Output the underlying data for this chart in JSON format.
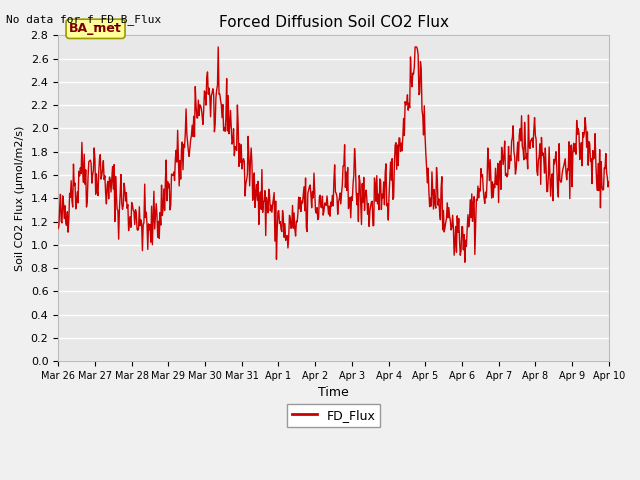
{
  "title": "Forced Diffusion Soil CO2 Flux",
  "top_left_text": "No data for f_FD_B_Flux",
  "ylabel": "Soil CO2 Flux (μmol/m2/s)",
  "xlabel": "Time",
  "ylim": [
    0.0,
    2.8
  ],
  "yticks": [
    0.0,
    0.2,
    0.4,
    0.6,
    0.8,
    1.0,
    1.2,
    1.4,
    1.6,
    1.8,
    2.0,
    2.2,
    2.4,
    2.6,
    2.8
  ],
  "line_color": "#cc0000",
  "line_width": 1.0,
  "bg_color": "#e8e8e8",
  "grid_color": "#ffffff",
  "legend_label": "FD_Flux",
  "ba_met_label": "BA_met",
  "ba_met_bg": "#ffff99",
  "ba_met_edge": "#999900",
  "x_tick_labels": [
    "Mar 26",
    "Mar 27",
    "Mar 28",
    "Mar 29",
    "Mar 30",
    "Mar 31",
    "Apr 1",
    "Apr 2",
    "Apr 3",
    "Apr 4",
    "Apr 5",
    "Apr 6",
    "Apr 7",
    "Apr 8",
    "Apr 9",
    "Apr 10"
  ],
  "seed": 42,
  "n_points": 720
}
